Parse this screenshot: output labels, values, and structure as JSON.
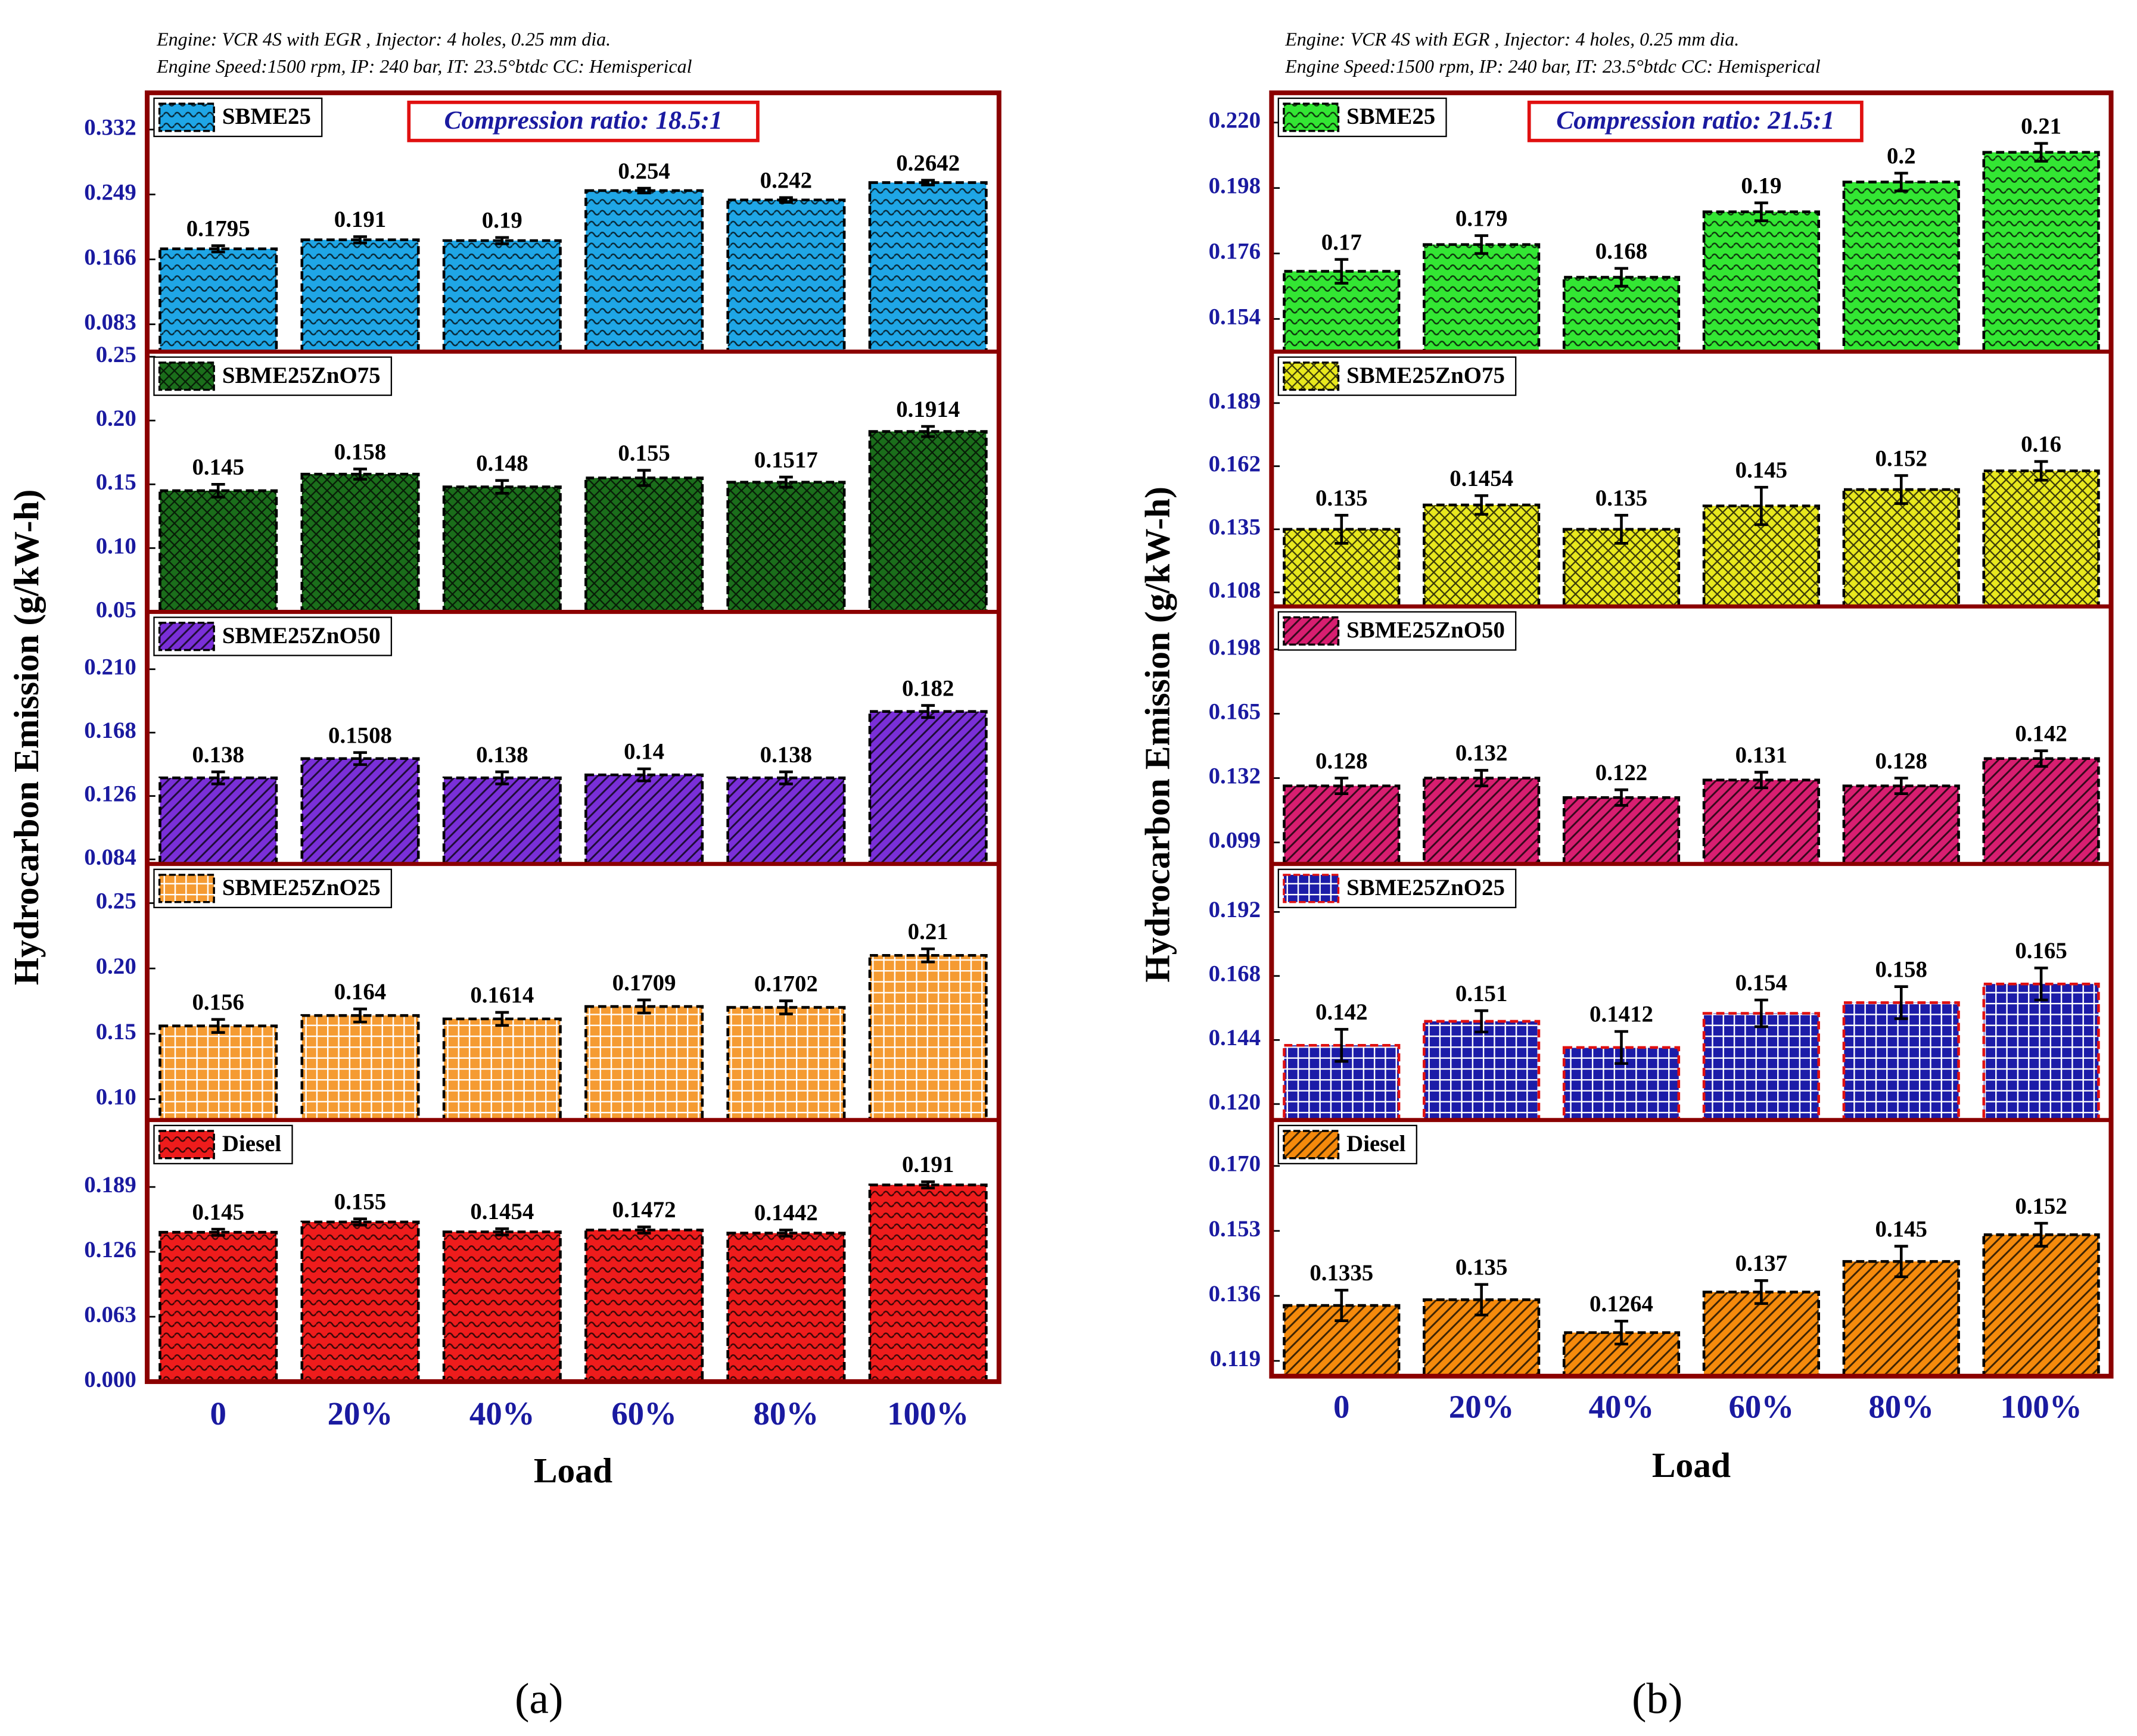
{
  "chart_data": [
    {
      "type": "bar",
      "notes": [
        "Engine: VCR 4S with EGR , Injector: 4 holes, 0.25 mm dia.",
        "Engine Speed:1500 rpm, IP: 240 bar, IT: 23.5°btdc CC: Hemisperical"
      ],
      "annotation": "Compression ratio: 18.5:1",
      "ylabel": "Hydrocarbon Emission (g/kW-h)",
      "xlabel": "Load",
      "caption": "(a)",
      "categories": [
        "0",
        "20%",
        "40%",
        "60%",
        "80%",
        "100%"
      ],
      "panels": [
        {
          "name": "SBME25",
          "color": "#1fa6e6",
          "hatch": "wave",
          "values": [
            0.1795,
            0.191,
            0.19,
            0.254,
            0.242,
            0.2642
          ],
          "errors": [
            0.004,
            0.004,
            0.004,
            0.003,
            0.003,
            0.003
          ],
          "ylim": [
            0.048,
            0.379
          ],
          "yticks": [
            0.083,
            0.166,
            0.249,
            0.332
          ]
        },
        {
          "name": "SBME25ZnO75",
          "color": "#1b6e1b",
          "hatch": "cross",
          "values": [
            0.145,
            0.158,
            0.148,
            0.155,
            0.1517,
            0.1914
          ],
          "errors": [
            0.005,
            0.004,
            0.005,
            0.006,
            0.004,
            0.004
          ],
          "ylim": [
            0.05,
            0.254
          ],
          "yticks": [
            0.05,
            {
              "value": 0.1,
              "label": "0.10"
            },
            0.15,
            {
              "value": 0.2,
              "label": "0.20"
            },
            0.25
          ]
        },
        {
          "name": "SBME25ZnO50",
          "color": "#7a2fd8",
          "hatch": "diag",
          "values": [
            0.138,
            0.1508,
            0.138,
            0.14,
            0.138,
            0.182
          ],
          "errors": [
            0.004,
            0.004,
            0.004,
            0.004,
            0.004,
            0.004
          ],
          "ylim": [
            0.081,
            0.248
          ],
          "yticks": [
            0.084,
            0.126,
            0.168,
            {
              "value": 0.21,
              "label": "0.210"
            }
          ]
        },
        {
          "name": "SBME25ZnO25",
          "color": "#f59b32",
          "hatch": "grid",
          "values": [
            0.156,
            0.164,
            0.1614,
            0.1709,
            0.1702,
            0.21
          ],
          "errors": [
            0.005,
            0.005,
            0.005,
            0.005,
            0.005,
            0.005
          ],
          "ylim": [
            0.084,
            0.28
          ],
          "yticks": [
            {
              "value": 0.1,
              "label": "0.10"
            },
            0.15,
            {
              "value": 0.2,
              "label": "0.20"
            },
            0.25
          ]
        },
        {
          "name": "Diesel",
          "color": "#ee1c1c",
          "hatch": "wave",
          "values": [
            0.145,
            0.155,
            0.1454,
            0.1472,
            0.1442,
            0.191
          ],
          "errors": [
            0.003,
            0.003,
            0.003,
            0.003,
            0.003,
            0.003
          ],
          "ylim": [
            0,
            0.254
          ],
          "yticks": [
            {
              "value": 0,
              "label": "0.000"
            },
            0.063,
            0.126,
            0.189
          ]
        }
      ]
    },
    {
      "type": "bar",
      "notes": [
        "Engine: VCR 4S with EGR , Injector: 4 holes, 0.25 mm dia.",
        "Engine Speed:1500 rpm, IP: 240 bar, IT: 23.5°btdc CC: Hemisperical"
      ],
      "annotation": "Compression ratio: 21.5:1",
      "ylabel": "Hydrocarbon Emission (g/kW-h)",
      "xlabel": "Load",
      "caption": "(b)",
      "categories": [
        "0",
        "20%",
        "40%",
        "60%",
        "80%",
        "100%"
      ],
      "panels": [
        {
          "name": "SBME25",
          "color": "#33e633",
          "hatch": "wave",
          "values": [
            0.17,
            0.179,
            0.168,
            0.19,
            0.2,
            0.21
          ],
          "errors": [
            0.004,
            0.003,
            0.003,
            0.003,
            0.003,
            0.003
          ],
          "ylim": [
            0.143,
            0.23
          ],
          "yticks": [
            0.154,
            0.176,
            0.198,
            {
              "value": 0.22,
              "label": "0.220"
            }
          ]
        },
        {
          "name": "SBME25ZnO75",
          "color": "#e8e81e",
          "hatch": "cross",
          "values": [
            0.135,
            0.1454,
            0.135,
            0.145,
            0.152,
            0.16
          ],
          "errors": [
            0.006,
            0.004,
            0.006,
            0.008,
            0.006,
            0.004
          ],
          "ylim": [
            0.102,
            0.211
          ],
          "yticks": [
            0.108,
            0.135,
            0.162,
            0.189
          ]
        },
        {
          "name": "SBME25ZnO50",
          "color": "#d81e70",
          "hatch": "diag",
          "values": [
            0.128,
            0.132,
            0.122,
            0.131,
            0.128,
            0.142
          ],
          "errors": [
            0.004,
            0.004,
            0.004,
            0.004,
            0.004,
            0.004
          ],
          "ylim": [
            0.088,
            0.22
          ],
          "yticks": [
            0.099,
            0.132,
            0.165,
            0.198
          ]
        },
        {
          "name": "SBME25ZnO25",
          "color": "#1c1ca8",
          "hatch": "grid",
          "edgecolor": "#e01010",
          "values": [
            0.142,
            0.151,
            0.1412,
            0.154,
            0.158,
            0.165
          ],
          "errors": [
            0.006,
            0.004,
            0.006,
            0.005,
            0.006,
            0.006
          ],
          "ylim": [
            0.114,
            0.21
          ],
          "yticks": [
            {
              "value": 0.12,
              "label": "0.120"
            },
            0.144,
            0.168,
            0.192
          ]
        },
        {
          "name": "Diesel",
          "color": "#f58a0c",
          "hatch": "diag",
          "values": [
            0.1335,
            0.135,
            0.1264,
            0.137,
            0.145,
            0.152
          ],
          "errors": [
            0.004,
            0.004,
            0.003,
            0.003,
            0.004,
            0.003
          ],
          "ylim": [
            0.115,
            0.182
          ],
          "yticks": [
            0.119,
            0.136,
            0.153,
            {
              "value": 0.17,
              "label": "0.170"
            }
          ]
        }
      ]
    }
  ]
}
